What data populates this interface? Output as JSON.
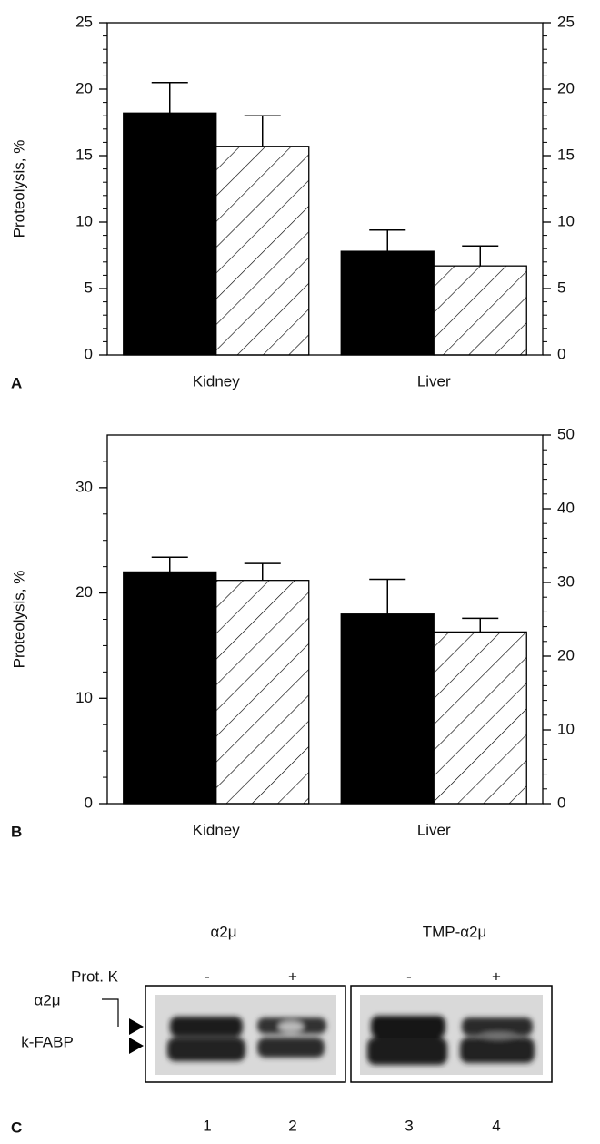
{
  "chart_data": [
    {
      "type": "bar",
      "panel_label": "A",
      "ylabel": "Proteolysis, %",
      "categories": [
        "Kidney",
        "Liver"
      ],
      "series": [
        {
          "color": "#000000",
          "fill": "solid",
          "values": [
            18.2,
            7.8
          ],
          "errors": [
            2.3,
            1.6
          ]
        },
        {
          "color": "#000000",
          "fill": "hatch",
          "values": [
            15.7,
            6.7
          ],
          "errors": [
            2.3,
            1.5
          ]
        }
      ],
      "ylim": [
        0,
        25
      ],
      "yticks": [
        0,
        5,
        10,
        15,
        20,
        25
      ],
      "yminor": 5,
      "y2lim": [
        0,
        25
      ],
      "y2ticks": [
        0,
        5,
        10,
        15,
        20,
        25
      ],
      "y2minor": 5
    },
    {
      "type": "bar",
      "panel_label": "B",
      "ylabel": "Proteolysis, %",
      "categories": [
        "Kidney",
        "Liver"
      ],
      "series": [
        {
          "color": "#000000",
          "fill": "solid",
          "values": [
            22,
            18
          ],
          "errors": [
            1.4,
            3.3
          ]
        },
        {
          "color": "#000000",
          "fill": "hatch",
          "values": [
            21.2,
            16.3
          ],
          "errors": [
            1.6,
            1.3
          ]
        }
      ],
      "ylim": [
        0,
        35
      ],
      "yticks": [
        0,
        10,
        20,
        30
      ],
      "yminor": 4,
      "y2lim": [
        0,
        50
      ],
      "y2ticks": [
        0,
        10,
        20,
        30,
        40,
        50
      ],
      "y2minor": 5
    }
  ],
  "gel": {
    "panel_label": "C",
    "groups": [
      "α2μ",
      "TMP-α2μ"
    ],
    "row_label": "Prot. K",
    "treatments": [
      "-",
      "+",
      "-",
      "+"
    ],
    "band_labels": [
      "α2μ",
      "k-FABP"
    ],
    "lanes": [
      "1",
      "2",
      "3",
      "4"
    ]
  }
}
